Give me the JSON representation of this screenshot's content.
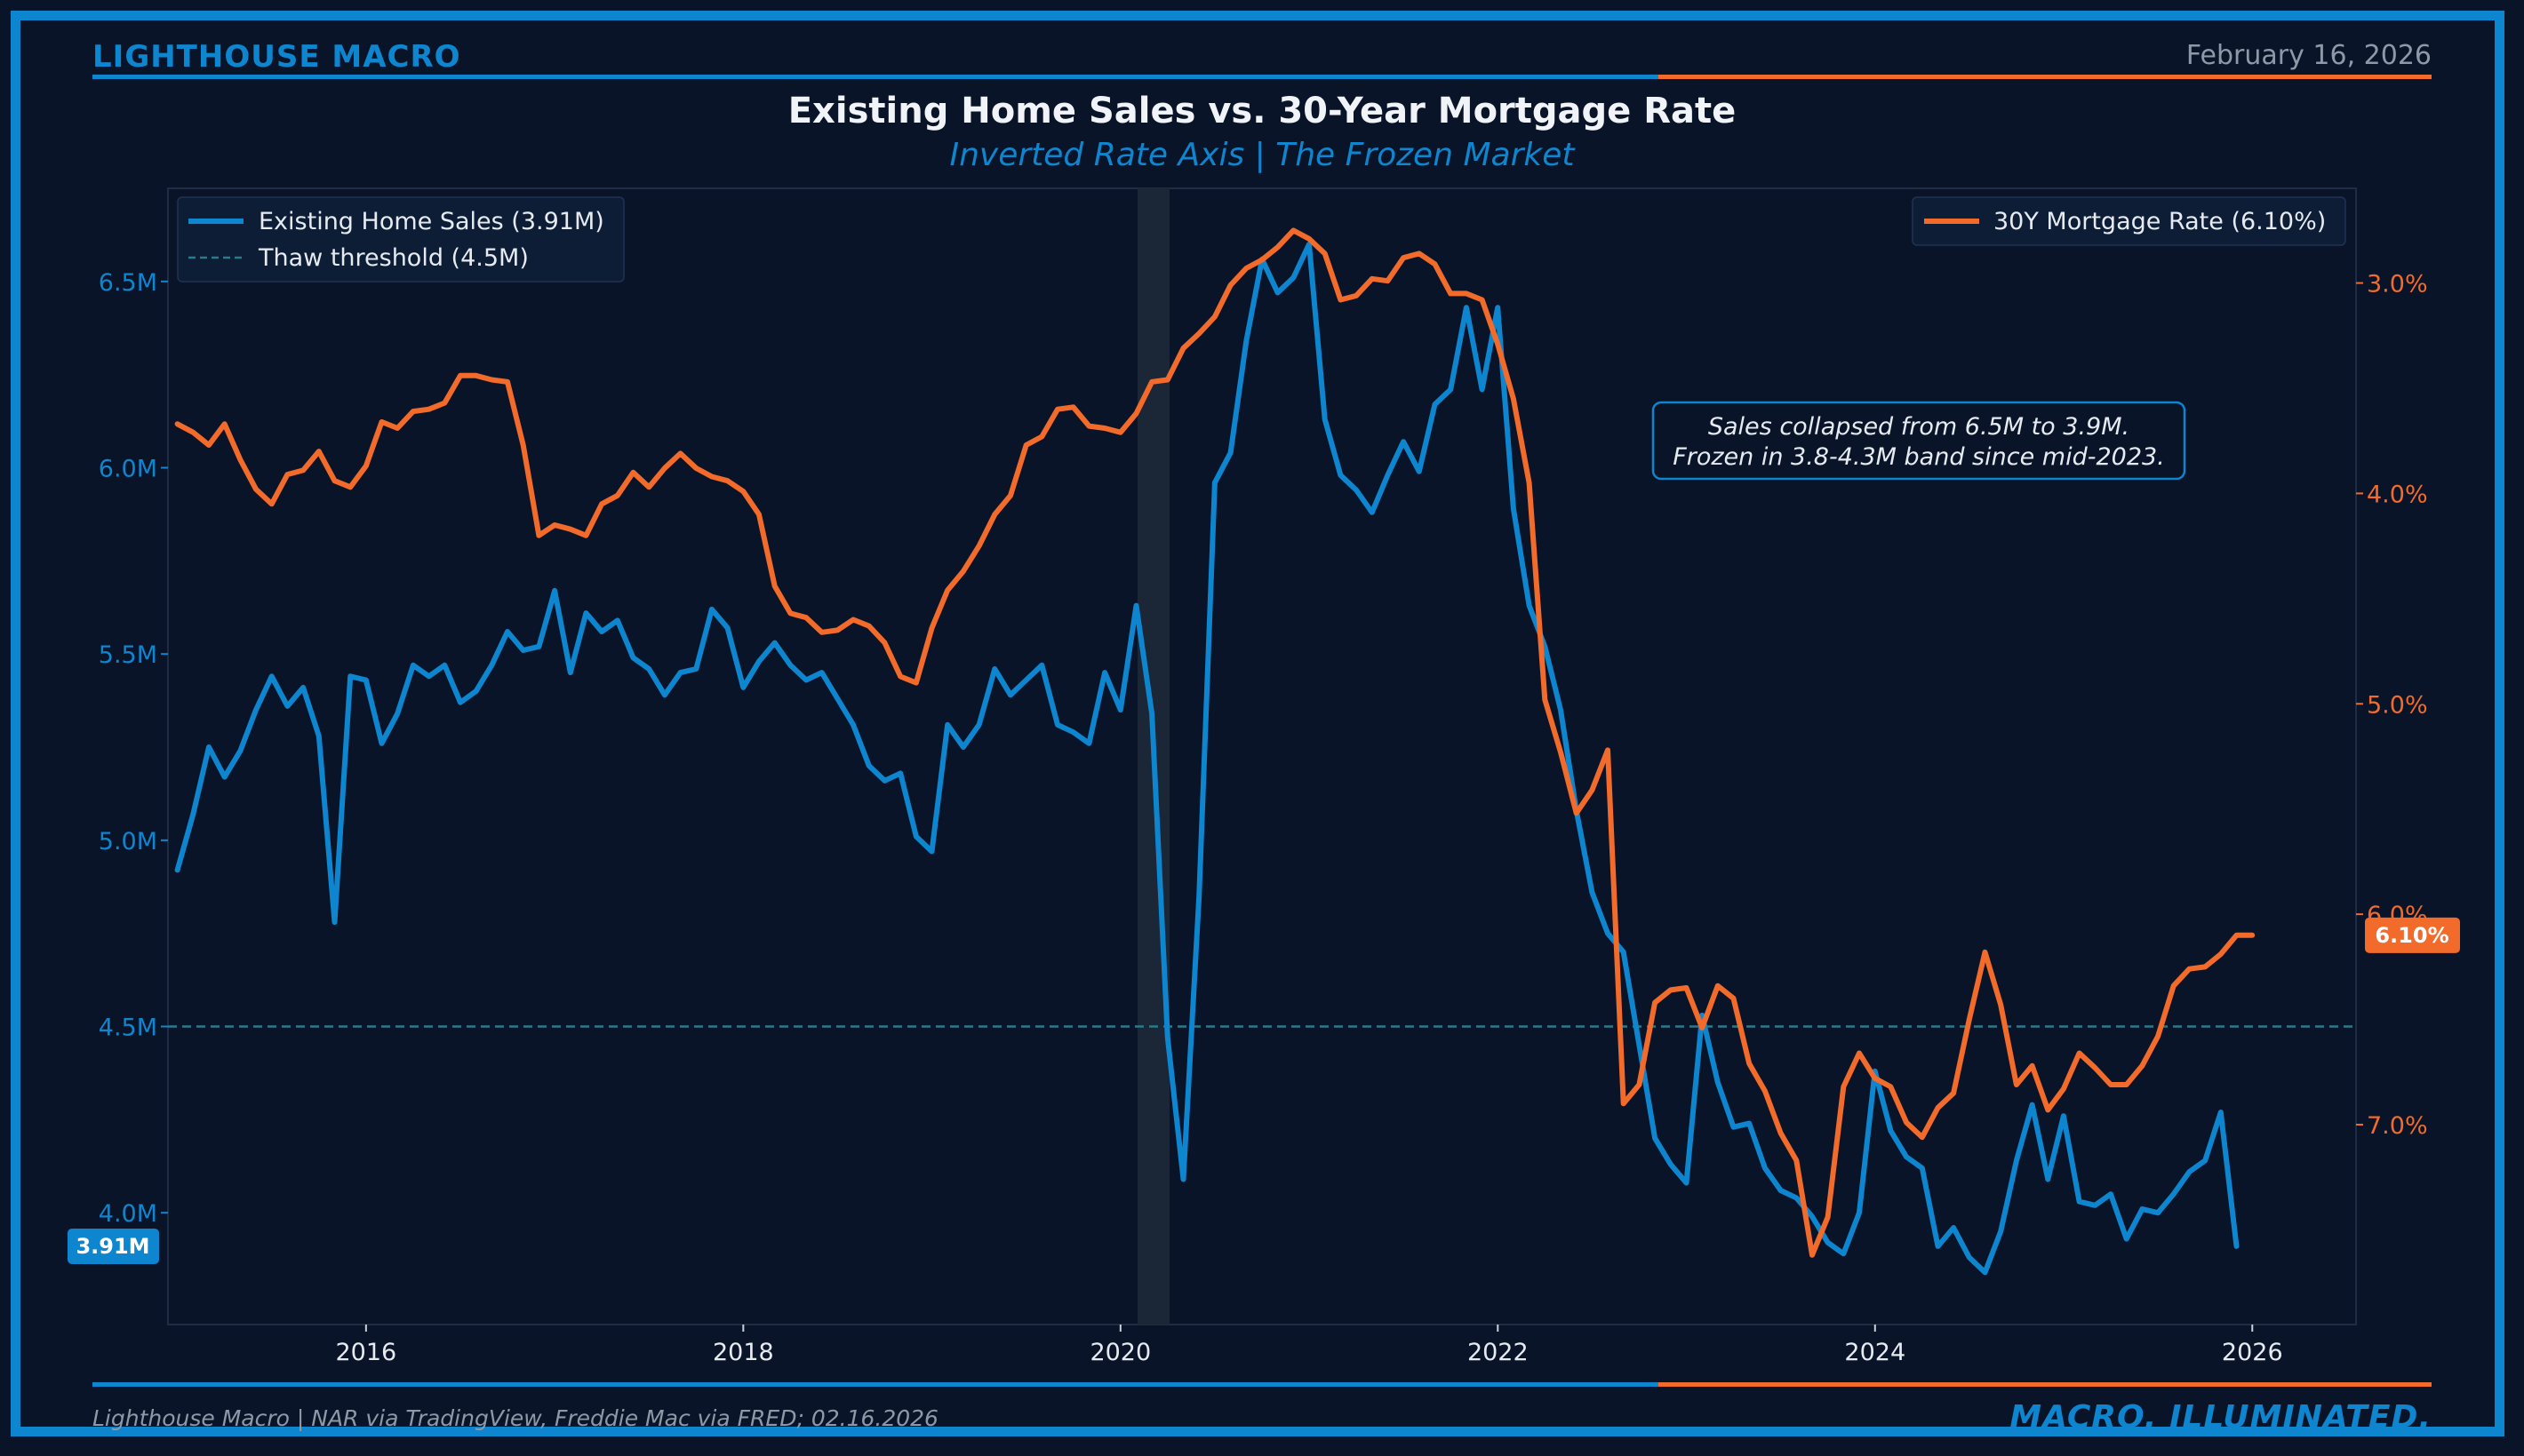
{
  "header": {
    "brand": "LIGHTHOUSE MACRO",
    "date": "February 16, 2026"
  },
  "footer": {
    "source": "Lighthouse Macro | NAR via TradingView, Freddie Mac via FRED; 02.16.2026",
    "tagline": "MACRO, ILLUMINATED."
  },
  "colors": {
    "blue": "#0e85cf",
    "orange": "#f26b2a",
    "background": "#0a1428",
    "threshold": "#2b7a8c",
    "annotation_border": "#0e85cf"
  },
  "chart_data": {
    "type": "line",
    "title": "Existing Home Sales vs. 30-Year Mortgage Rate",
    "subtitle": "Inverted Rate Axis | The Frozen Market",
    "x_range": [
      2014.95,
      2026.55
    ],
    "x_ticks": [
      {
        "value": 2016,
        "label": "2016"
      },
      {
        "value": 2018,
        "label": "2018"
      },
      {
        "value": 2020,
        "label": "2020"
      },
      {
        "value": 2022,
        "label": "2022"
      },
      {
        "value": 2024,
        "label": "2024"
      },
      {
        "value": 2026,
        "label": "2026"
      }
    ],
    "left_axis": {
      "unit": "M",
      "range": [
        3.7,
        6.75
      ],
      "ticks": [
        {
          "value": 4.0,
          "label": "4.0M"
        },
        {
          "value": 4.5,
          "label": "4.5M"
        },
        {
          "value": 5.0,
          "label": "5.0M"
        },
        {
          "value": 5.5,
          "label": "5.5M"
        },
        {
          "value": 6.0,
          "label": "6.0M"
        },
        {
          "value": 6.5,
          "label": "6.5M"
        }
      ]
    },
    "right_axis": {
      "inverted": true,
      "unit": "%",
      "range": [
        2.55,
        7.95
      ],
      "ticks": [
        {
          "value": 3.0,
          "label": "3.0%"
        },
        {
          "value": 4.0,
          "label": "4.0%"
        },
        {
          "value": 5.0,
          "label": "5.0%"
        },
        {
          "value": 6.0,
          "label": "6.0%"
        },
        {
          "value": 7.0,
          "label": "7.0%"
        }
      ]
    },
    "shaded_region": {
      "from": 2020.09,
      "to": 2020.26
    },
    "threshold": {
      "value": 4.5,
      "legend": "Thaw threshold (4.5M)"
    },
    "annotation": {
      "line1": "Sales collapsed from 6.5M to 3.9M.",
      "line2": "Frozen in 3.8-4.3M band since mid-2023."
    },
    "series": [
      {
        "name": "Existing Home Sales",
        "legend": "Existing Home Sales (3.91M)",
        "axis": "left",
        "end_label": "3.91M",
        "x_start": 2015.0,
        "step": 0.08333,
        "values": [
          4.92,
          5.07,
          5.25,
          5.17,
          5.24,
          5.35,
          5.44,
          5.36,
          5.41,
          5.28,
          4.78,
          5.44,
          5.43,
          5.26,
          5.34,
          5.47,
          5.44,
          5.47,
          5.37,
          5.4,
          5.47,
          5.56,
          5.51,
          5.52,
          5.67,
          5.45,
          5.61,
          5.56,
          5.59,
          5.49,
          5.46,
          5.39,
          5.45,
          5.46,
          5.62,
          5.57,
          5.41,
          5.48,
          5.53,
          5.47,
          5.43,
          5.45,
          5.38,
          5.31,
          5.2,
          5.16,
          5.18,
          5.01,
          4.97,
          5.31,
          5.25,
          5.31,
          5.46,
          5.39,
          5.43,
          5.47,
          5.31,
          5.29,
          5.26,
          5.45,
          5.35,
          5.63,
          5.34,
          4.47,
          4.09,
          4.85,
          5.96,
          6.04,
          6.34,
          6.56,
          6.47,
          6.51,
          6.6,
          6.13,
          5.98,
          5.94,
          5.88,
          5.98,
          6.07,
          5.99,
          6.17,
          6.21,
          6.43,
          6.21,
          6.43,
          5.89,
          5.63,
          5.52,
          5.35,
          5.08,
          4.86,
          4.75,
          4.7,
          4.45,
          4.2,
          4.13,
          4.08,
          4.53,
          4.35,
          4.23,
          4.24,
          4.12,
          4.06,
          4.04,
          3.99,
          3.92,
          3.89,
          4.0,
          4.38,
          4.22,
          4.15,
          4.12,
          3.91,
          3.96,
          3.88,
          3.84,
          3.95,
          4.14,
          4.29,
          4.09,
          4.26,
          4.03,
          4.02,
          4.05,
          3.93,
          4.01,
          4.0,
          4.05,
          4.11,
          4.14,
          4.27,
          3.91
        ]
      },
      {
        "name": "30Y Mortgage Rate",
        "legend": "30Y Mortgage Rate (6.10%)",
        "axis": "right",
        "end_label": "6.10%",
        "x_start": 2015.0,
        "step": 0.08333,
        "values": [
          3.67,
          3.71,
          3.77,
          3.67,
          3.84,
          3.98,
          4.05,
          3.91,
          3.89,
          3.8,
          3.94,
          3.97,
          3.87,
          3.66,
          3.69,
          3.61,
          3.6,
          3.57,
          3.44,
          3.44,
          3.46,
          3.47,
          3.77,
          4.2,
          4.15,
          4.17,
          4.2,
          4.05,
          4.01,
          3.9,
          3.97,
          3.88,
          3.81,
          3.88,
          3.92,
          3.94,
          3.99,
          4.1,
          4.44,
          4.57,
          4.59,
          4.66,
          4.65,
          4.6,
          4.63,
          4.71,
          4.87,
          4.9,
          4.64,
          4.46,
          4.37,
          4.25,
          4.1,
          4.01,
          3.77,
          3.73,
          3.6,
          3.59,
          3.68,
          3.69,
          3.71,
          3.62,
          3.47,
          3.46,
          3.31,
          3.24,
          3.16,
          3.01,
          2.93,
          2.89,
          2.83,
          2.75,
          2.79,
          2.86,
          3.08,
          3.06,
          2.98,
          2.99,
          2.88,
          2.86,
          2.91,
          3.05,
          3.05,
          3.08,
          3.29,
          3.55,
          3.95,
          4.98,
          5.23,
          5.52,
          5.41,
          5.22,
          6.9,
          6.81,
          6.42,
          6.36,
          6.35,
          6.54,
          6.34,
          6.4,
          6.71,
          6.84,
          7.04,
          7.17,
          7.62,
          7.44,
          6.82,
          6.66,
          6.78,
          6.82,
          6.99,
          7.06,
          6.92,
          6.85,
          6.5,
          6.18,
          6.43,
          6.81,
          6.72,
          6.93,
          6.83,
          6.66,
          6.73,
          6.81,
          6.81,
          6.72,
          6.58,
          6.34,
          6.26,
          6.25,
          6.19,
          6.1,
          6.1
        ]
      }
    ]
  }
}
